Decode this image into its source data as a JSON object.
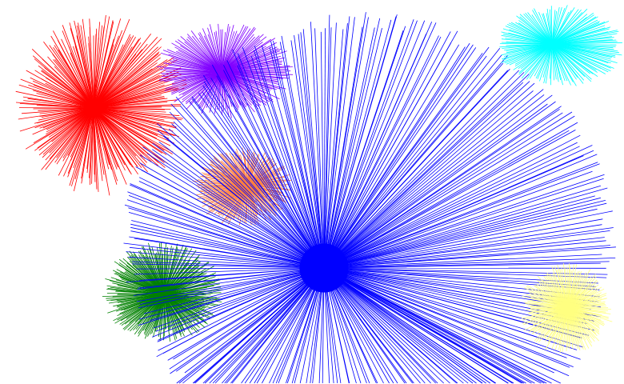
{
  "background": "#ffffff",
  "bursts": [
    {
      "name": "red-burst",
      "color": "#ff0000"
    },
    {
      "name": "purple-burst",
      "color": "#8000ff"
    },
    {
      "name": "orange-burst",
      "color": "#ff8040"
    },
    {
      "name": "green-burst",
      "color": "#008000"
    },
    {
      "name": "blue-burst",
      "color": "#0000ff"
    },
    {
      "name": "cyan-burst",
      "color": "#00ffff"
    },
    {
      "name": "yellow-burst",
      "color": "#ffff80"
    }
  ]
}
